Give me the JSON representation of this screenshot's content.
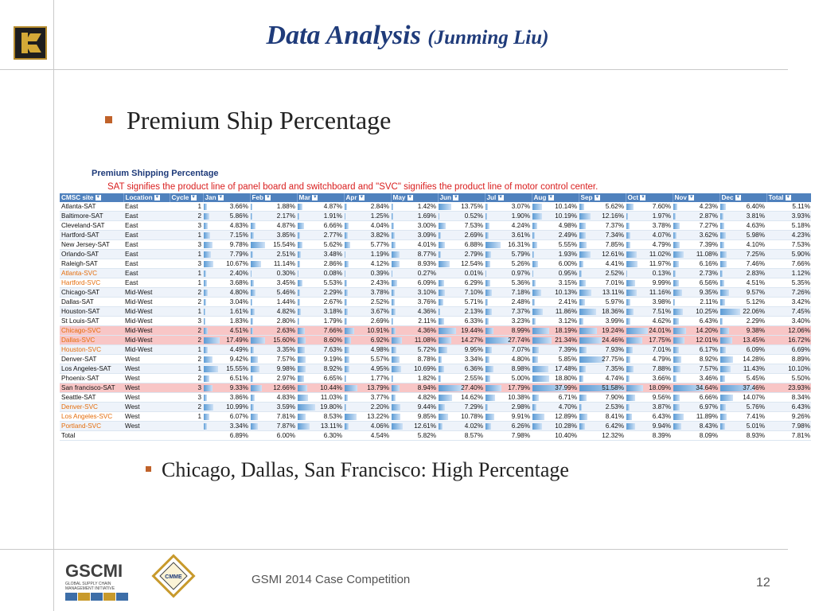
{
  "slide": {
    "title": "Data Analysis",
    "title_sub": "(Junming Liu)",
    "bullet1": "Premium Ship Percentage",
    "bullet2": "Chicago, Dallas, San Francisco: High Percentage",
    "footer": "GSMI 2014 Case Competition",
    "page_number": "12"
  },
  "logos": {
    "gscmi": "GSCMI",
    "gscmi_line1": "GLOBAL SUPPLY CHAIN",
    "gscmi_line2": "MANAGEMENT INITIATIVE",
    "cmme": "CMME"
  },
  "table": {
    "title": "Premium Shipping Percentage",
    "note": "SAT signifies the product line of panel board and switchboard and \"SVC\" signifies the product line of motor control center.",
    "headers": [
      "CMSC site",
      "Location",
      "Cycle",
      "Jan",
      "Feb",
      "Mar",
      "Apr",
      "May",
      "Jun",
      "Jul",
      "Aug",
      "Sep",
      "Oct",
      "Nov",
      "Dec",
      "Total"
    ],
    "rows": [
      {
        "site": "Atlanta-SAT",
        "location": "East",
        "cycle": "1",
        "svc": false,
        "hl": false,
        "values": [
          "3.66%",
          "1.88%",
          "4.87%",
          "2.84%",
          "1.42%",
          "13.75%",
          "3.07%",
          "10.14%",
          "5.62%",
          "7.60%",
          "4.23%",
          "6.40%",
          "5.11%"
        ]
      },
      {
        "site": "Baltimore-SAT",
        "location": "East",
        "cycle": "2",
        "svc": false,
        "hl": false,
        "values": [
          "5.86%",
          "2.17%",
          "1.91%",
          "1.25%",
          "1.69%",
          "0.52%",
          "1.90%",
          "10.19%",
          "12.16%",
          "1.97%",
          "2.87%",
          "3.81%",
          "3.93%"
        ]
      },
      {
        "site": "Cleveland-SAT",
        "location": "East",
        "cycle": "3",
        "svc": false,
        "hl": false,
        "values": [
          "4.83%",
          "4.87%",
          "6.66%",
          "4.04%",
          "3.00%",
          "7.53%",
          "4.24%",
          "4.98%",
          "7.37%",
          "3.78%",
          "7.27%",
          "4.63%",
          "5.18%"
        ]
      },
      {
        "site": "Hartford-SAT",
        "location": "East",
        "cycle": "1",
        "svc": false,
        "hl": false,
        "values": [
          "7.15%",
          "3.85%",
          "2.77%",
          "3.82%",
          "3.09%",
          "2.69%",
          "3.61%",
          "2.49%",
          "7.34%",
          "4.07%",
          "3.62%",
          "5.98%",
          "4.23%"
        ]
      },
      {
        "site": "New Jersey-SAT",
        "location": "East",
        "cycle": "3",
        "svc": false,
        "hl": false,
        "values": [
          "9.78%",
          "15.54%",
          "5.62%",
          "5.77%",
          "4.01%",
          "6.88%",
          "16.31%",
          "5.55%",
          "7.85%",
          "4.79%",
          "7.39%",
          "4.10%",
          "7.53%"
        ]
      },
      {
        "site": "Orlando-SAT",
        "location": "East",
        "cycle": "1",
        "svc": false,
        "hl": false,
        "values": [
          "7.79%",
          "2.51%",
          "3.48%",
          "1.19%",
          "8.77%",
          "2.79%",
          "5.79%",
          "1.93%",
          "12.61%",
          "11.02%",
          "11.08%",
          "7.25%",
          "5.90%"
        ]
      },
      {
        "site": "Raleigh-SAT",
        "location": "East",
        "cycle": "3",
        "svc": false,
        "hl": false,
        "values": [
          "10.67%",
          "11.14%",
          "2.86%",
          "4.12%",
          "8.93%",
          "12.54%",
          "5.26%",
          "6.00%",
          "4.41%",
          "11.97%",
          "6.16%",
          "7.46%",
          "7.66%"
        ]
      },
      {
        "site": "Atlanta-SVC",
        "location": "East",
        "cycle": "1",
        "svc": true,
        "hl": false,
        "values": [
          "2.40%",
          "0.30%",
          "0.08%",
          "0.39%",
          "0.27%",
          "0.01%",
          "0.97%",
          "0.95%",
          "2.52%",
          "0.13%",
          "2.73%",
          "2.83%",
          "1.12%"
        ]
      },
      {
        "site": "Hartford-SVC",
        "location": "East",
        "cycle": "1",
        "svc": true,
        "hl": false,
        "values": [
          "3.68%",
          "3.45%",
          "5.53%",
          "2.43%",
          "6.09%",
          "6.29%",
          "5.36%",
          "3.15%",
          "7.01%",
          "9.99%",
          "6.56%",
          "4.51%",
          "5.35%"
        ]
      },
      {
        "site": "Chicago-SAT",
        "location": "Mid-West",
        "cycle": "2",
        "svc": false,
        "hl": false,
        "values": [
          "4.80%",
          "5.46%",
          "2.29%",
          "3.78%",
          "3.10%",
          "7.10%",
          "7.18%",
          "10.13%",
          "13.11%",
          "11.16%",
          "9.35%",
          "9.57%",
          "7.26%"
        ]
      },
      {
        "site": "Dallas-SAT",
        "location": "Mid-West",
        "cycle": "2",
        "svc": false,
        "hl": false,
        "values": [
          "3.04%",
          "1.44%",
          "2.67%",
          "2.52%",
          "3.76%",
          "5.71%",
          "2.48%",
          "2.41%",
          "5.97%",
          "3.98%",
          "2.11%",
          "5.12%",
          "3.42%"
        ]
      },
      {
        "site": "Houston-SAT",
        "location": "Mid-West",
        "cycle": "1",
        "svc": false,
        "hl": false,
        "values": [
          "1.61%",
          "4.82%",
          "3.18%",
          "3.67%",
          "4.36%",
          "2.13%",
          "7.37%",
          "11.86%",
          "18.36%",
          "7.51%",
          "10.25%",
          "22.06%",
          "7.45%"
        ]
      },
      {
        "site": "St Louis-SAT",
        "location": "Mid-West",
        "cycle": "3",
        "svc": false,
        "hl": false,
        "values": [
          "1.83%",
          "2.80%",
          "1.79%",
          "2.69%",
          "2.11%",
          "6.33%",
          "3.23%",
          "3.12%",
          "3.99%",
          "4.62%",
          "6.43%",
          "2.29%",
          "3.40%"
        ]
      },
      {
        "site": "Chicago-SVC",
        "location": "Mid-West",
        "cycle": "2",
        "svc": true,
        "hl": true,
        "values": [
          "4.51%",
          "2.63%",
          "7.66%",
          "10.91%",
          "4.36%",
          "19.44%",
          "8.99%",
          "18.19%",
          "19.24%",
          "24.01%",
          "14.20%",
          "9.38%",
          "12.06%"
        ]
      },
      {
        "site": "Dallas-SVC",
        "location": "Mid-West",
        "cycle": "2",
        "svc": true,
        "hl": true,
        "values": [
          "17.49%",
          "15.60%",
          "8.60%",
          "6.92%",
          "11.08%",
          "14.27%",
          "27.74%",
          "21.34%",
          "24.46%",
          "17.75%",
          "12.01%",
          "13.45%",
          "16.72%"
        ]
      },
      {
        "site": "Houston-SVC",
        "location": "Mid-West",
        "cycle": "1",
        "svc": true,
        "hl": false,
        "values": [
          "4.49%",
          "3.35%",
          "7.63%",
          "4.98%",
          "5.72%",
          "9.95%",
          "7.07%",
          "7.39%",
          "7.93%",
          "7.01%",
          "6.17%",
          "6.09%",
          "6.69%"
        ]
      },
      {
        "site": "Denver-SAT",
        "location": "West",
        "cycle": "2",
        "svc": false,
        "hl": false,
        "values": [
          "9.42%",
          "7.57%",
          "9.19%",
          "5.57%",
          "8.78%",
          "3.34%",
          "4.80%",
          "5.85%",
          "27.75%",
          "4.79%",
          "8.92%",
          "14.28%",
          "8.89%"
        ]
      },
      {
        "site": "Los Angeles-SAT",
        "location": "West",
        "cycle": "1",
        "svc": false,
        "hl": false,
        "values": [
          "15.55%",
          "9.98%",
          "8.92%",
          "4.95%",
          "10.69%",
          "6.36%",
          "8.98%",
          "17.48%",
          "7.35%",
          "7.88%",
          "7.57%",
          "11.43%",
          "10.10%"
        ]
      },
      {
        "site": "Phoenix-SAT",
        "location": "West",
        "cycle": "2",
        "svc": false,
        "hl": false,
        "values": [
          "6.51%",
          "2.97%",
          "6.65%",
          "1.77%",
          "1.82%",
          "2.55%",
          "5.00%",
          "18.80%",
          "4.74%",
          "3.66%",
          "3.46%",
          "5.45%",
          "5.50%"
        ]
      },
      {
        "site": "San francisco-SAT",
        "location": "West",
        "cycle": "3",
        "svc": false,
        "hl": true,
        "values": [
          "9.33%",
          "12.66%",
          "10.44%",
          "13.79%",
          "8.94%",
          "27.40%",
          "17.79%",
          "37.99%",
          "51.58%",
          "18.09%",
          "34.64%",
          "37.46%",
          "23.93%"
        ]
      },
      {
        "site": "Seattle-SAT",
        "location": "West",
        "cycle": "3",
        "svc": false,
        "hl": false,
        "values": [
          "3.86%",
          "4.83%",
          "11.03%",
          "3.77%",
          "4.82%",
          "14.62%",
          "10.38%",
          "6.71%",
          "7.90%",
          "9.56%",
          "6.66%",
          "14.07%",
          "8.34%"
        ]
      },
      {
        "site": "Denver-SVC",
        "location": "West",
        "cycle": "2",
        "svc": true,
        "hl": false,
        "values": [
          "10.99%",
          "3.59%",
          "19.80%",
          "2.20%",
          "9.44%",
          "7.29%",
          "2.98%",
          "4.70%",
          "2.53%",
          "3.87%",
          "6.97%",
          "5.76%",
          "6.43%"
        ]
      },
      {
        "site": "Los Angeles-SVC",
        "location": "West",
        "cycle": "1",
        "svc": true,
        "hl": false,
        "values": [
          "6.07%",
          "7.81%",
          "8.53%",
          "13.22%",
          "9.85%",
          "10.78%",
          "9.91%",
          "12.89%",
          "8.41%",
          "6.43%",
          "11.89%",
          "7.41%",
          "9.26%"
        ]
      },
      {
        "site": "Portland-SVC",
        "location": "West",
        "cycle": "",
        "svc": true,
        "hl": false,
        "values": [
          "3.34%",
          "7.87%",
          "13.11%",
          "4.06%",
          "12.61%",
          "4.02%",
          "6.26%",
          "10.28%",
          "6.42%",
          "9.94%",
          "8.43%",
          "5.01%",
          "7.98%"
        ]
      }
    ],
    "total": {
      "site": "Total",
      "values": [
        "6.89%",
        "6.00%",
        "6.30%",
        "4.54%",
        "5.82%",
        "8.57%",
        "7.98%",
        "10.40%",
        "12.32%",
        "8.39%",
        "8.09%",
        "8.93%",
        "7.81%"
      ]
    }
  },
  "colors": {
    "title": "#1f3b7a",
    "header_bg": "#4f81bd",
    "svc_text": "#e46c0a",
    "highlight_row": "#f8c6c6",
    "note_text": "#d91e1e",
    "bullet": "#c0622a"
  }
}
